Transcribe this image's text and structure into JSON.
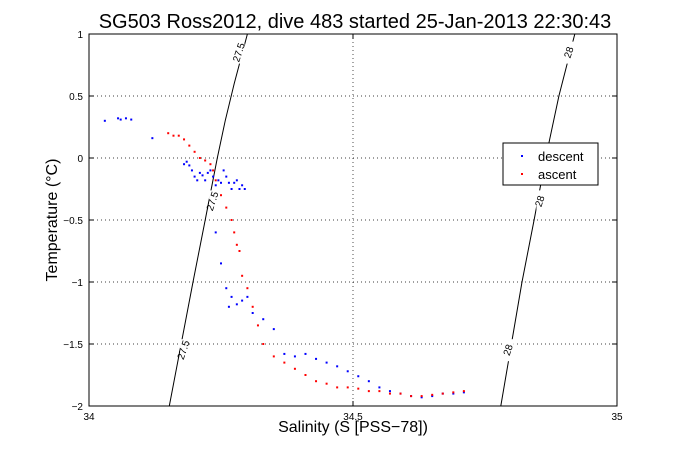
{
  "chart_data": {
    "type": "scatter",
    "title": "SG503 Ross2012, dive 483 started 25-Jan-2013 22:30:43",
    "xlabel": "Salinity (S [PSS−78])",
    "ylabel": "Temperature (°C)",
    "xlim": [
      34,
      35
    ],
    "ylim": [
      -2,
      1
    ],
    "xticks": [
      34,
      34.5,
      35
    ],
    "xtick_labels": [
      "34",
      "34.5",
      "35"
    ],
    "yticks": [
      -2,
      -1.5,
      -1,
      -0.5,
      0,
      0.5,
      1
    ],
    "ytick_labels": [
      "−2",
      "−1.5",
      "−1",
      "−0.5",
      "0",
      "0.5",
      "1"
    ],
    "grid": true,
    "legend": "right",
    "series": [
      {
        "name": "descent",
        "color": "#0000ff",
        "marker": "dot",
        "points": [
          [
            34.03,
            0.3
          ],
          [
            34.055,
            0.32
          ],
          [
            34.06,
            0.31
          ],
          [
            34.07,
            0.32
          ],
          [
            34.08,
            0.31
          ],
          [
            34.12,
            0.16
          ],
          [
            34.18,
            -0.05
          ],
          [
            34.185,
            -0.03
          ],
          [
            34.19,
            -0.06
          ],
          [
            34.195,
            -0.1
          ],
          [
            34.2,
            -0.15
          ],
          [
            34.205,
            -0.18
          ],
          [
            34.21,
            -0.12
          ],
          [
            34.215,
            -0.14
          ],
          [
            34.22,
            -0.18
          ],
          [
            34.225,
            -0.12
          ],
          [
            34.23,
            -0.1
          ],
          [
            34.235,
            -0.15
          ],
          [
            34.24,
            -0.22
          ],
          [
            34.245,
            -0.18
          ],
          [
            34.25,
            -0.2
          ],
          [
            34.255,
            -0.1
          ],
          [
            34.26,
            -0.15
          ],
          [
            34.265,
            -0.2
          ],
          [
            34.27,
            -0.25
          ],
          [
            34.275,
            -0.2
          ],
          [
            34.28,
            -0.18
          ],
          [
            34.285,
            -0.25
          ],
          [
            34.29,
            -0.22
          ],
          [
            34.295,
            -0.25
          ],
          [
            34.24,
            -0.6
          ],
          [
            34.25,
            -0.85
          ],
          [
            34.26,
            -1.05
          ],
          [
            34.265,
            -1.2
          ],
          [
            34.27,
            -1.12
          ],
          [
            34.28,
            -1.18
          ],
          [
            34.29,
            -1.15
          ],
          [
            34.3,
            -1.12
          ],
          [
            34.31,
            -1.25
          ],
          [
            34.33,
            -1.3
          ],
          [
            34.35,
            -1.38
          ],
          [
            34.37,
            -1.58
          ],
          [
            34.39,
            -1.6
          ],
          [
            34.41,
            -1.58
          ],
          [
            34.43,
            -1.62
          ],
          [
            34.45,
            -1.65
          ],
          [
            34.47,
            -1.68
          ],
          [
            34.49,
            -1.72
          ],
          [
            34.51,
            -1.76
          ],
          [
            34.53,
            -1.8
          ],
          [
            34.55,
            -1.85
          ],
          [
            34.57,
            -1.88
          ],
          [
            34.59,
            -1.9
          ],
          [
            34.61,
            -1.92
          ],
          [
            34.63,
            -1.93
          ],
          [
            34.65,
            -1.92
          ],
          [
            34.67,
            -1.9
          ],
          [
            34.69,
            -1.9
          ],
          [
            34.71,
            -1.89
          ]
        ]
      },
      {
        "name": "ascent",
        "color": "#ff0000",
        "marker": "dot",
        "points": [
          [
            34.15,
            0.2
          ],
          [
            34.16,
            0.18
          ],
          [
            34.17,
            0.18
          ],
          [
            34.18,
            0.15
          ],
          [
            34.19,
            0.1
          ],
          [
            34.2,
            0.05
          ],
          [
            34.21,
            0.0
          ],
          [
            34.22,
            -0.02
          ],
          [
            34.23,
            -0.05
          ],
          [
            34.235,
            -0.1
          ],
          [
            34.24,
            -0.18
          ],
          [
            34.25,
            -0.3
          ],
          [
            34.26,
            -0.4
          ],
          [
            34.27,
            -0.5
          ],
          [
            34.275,
            -0.6
          ],
          [
            34.28,
            -0.7
          ],
          [
            34.285,
            -0.75
          ],
          [
            34.29,
            -0.95
          ],
          [
            34.3,
            -1.05
          ],
          [
            34.31,
            -1.2
          ],
          [
            34.32,
            -1.35
          ],
          [
            34.33,
            -1.5
          ],
          [
            34.35,
            -1.6
          ],
          [
            34.37,
            -1.65
          ],
          [
            34.39,
            -1.7
          ],
          [
            34.41,
            -1.75
          ],
          [
            34.43,
            -1.8
          ],
          [
            34.45,
            -1.82
          ],
          [
            34.47,
            -1.85
          ],
          [
            34.49,
            -1.85
          ],
          [
            34.51,
            -1.86
          ],
          [
            34.53,
            -1.88
          ],
          [
            34.55,
            -1.88
          ],
          [
            34.57,
            -1.9
          ],
          [
            34.59,
            -1.9
          ],
          [
            34.61,
            -1.92
          ],
          [
            34.63,
            -1.92
          ],
          [
            34.65,
            -1.91
          ],
          [
            34.67,
            -1.9
          ],
          [
            34.69,
            -1.89
          ],
          [
            34.71,
            -1.88
          ]
        ]
      }
    ],
    "contours": [
      {
        "label": "27.5",
        "color": "#000000",
        "points": [
          [
            34.152,
            -2.0
          ],
          [
            34.197,
            -1.0
          ],
          [
            34.22,
            -0.5
          ],
          [
            34.243,
            0.0
          ],
          [
            34.258,
            0.3
          ],
          [
            34.275,
            0.6
          ],
          [
            34.3,
            1.0
          ]
        ],
        "label_positions": [
          [
            34.285,
            0.85
          ],
          [
            34.235,
            -0.35
          ],
          [
            34.18,
            -1.55
          ]
        ]
      },
      {
        "label": "28",
        "color": "#000000",
        "points": [
          [
            34.78,
            -2.0
          ],
          [
            34.8,
            -1.5
          ],
          [
            34.82,
            -1.0
          ],
          [
            34.843,
            -0.5
          ],
          [
            34.865,
            0.0
          ],
          [
            34.89,
            0.5
          ],
          [
            34.92,
            1.0
          ]
        ],
        "label_positions": [
          [
            34.91,
            0.85
          ],
          [
            34.855,
            -0.35
          ],
          [
            34.795,
            -1.55
          ]
        ]
      }
    ]
  }
}
